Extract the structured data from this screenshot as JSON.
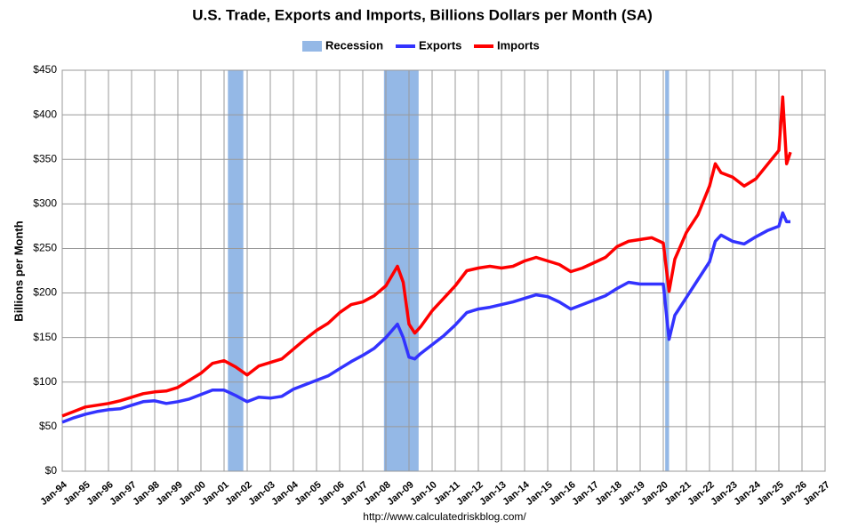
{
  "chart_data": {
    "type": "line",
    "title": "U.S. Trade, Exports and Imports, Billions Dollars per Month (SA)",
    "y_label": "Billions per Month",
    "source": "http://www.calculatedriskblog.com/",
    "legend_position": "top",
    "grid": true,
    "recession_name": "Recession",
    "recession_color": "#94b8e6",
    "recessions": [
      {
        "start": "Mar-01",
        "end": "Nov-01"
      },
      {
        "start": "Dec-07",
        "end": "Jun-09"
      },
      {
        "start": "Feb-20",
        "end": "Apr-20"
      }
    ],
    "x": [
      "Jan-94",
      "Jul-94",
      "Jan-95",
      "Jul-95",
      "Jan-96",
      "Jul-96",
      "Jan-97",
      "Jul-97",
      "Jan-98",
      "Jul-98",
      "Jan-99",
      "Jul-99",
      "Jan-00",
      "Jul-00",
      "Jan-01",
      "Jul-01",
      "Jan-02",
      "Jul-02",
      "Jan-03",
      "Jul-03",
      "Jan-04",
      "Jul-04",
      "Jan-05",
      "Jul-05",
      "Jan-06",
      "Jul-06",
      "Jan-07",
      "Jul-07",
      "Jan-08",
      "Jul-08",
      "Oct-08",
      "Jan-09",
      "Apr-09",
      "Jul-09",
      "Jan-10",
      "Jul-10",
      "Jan-11",
      "Jul-11",
      "Jan-12",
      "Jul-12",
      "Jan-13",
      "Jul-13",
      "Jan-14",
      "Jul-14",
      "Jan-15",
      "Jul-15",
      "Jan-16",
      "Jul-16",
      "Jan-17",
      "Jul-17",
      "Jan-18",
      "Jul-18",
      "Jan-19",
      "Jul-19",
      "Jan-20",
      "Apr-20",
      "Jul-20",
      "Jan-21",
      "Jul-21",
      "Jan-22",
      "Apr-22",
      "Jul-22",
      "Jan-23",
      "Jul-23",
      "Jan-24",
      "Jul-24",
      "Jan-25",
      "Mar-25",
      "May-25",
      "Jul-25"
    ],
    "series": [
      {
        "name": "Exports",
        "color": "#3333ff",
        "values": [
          55,
          60,
          64,
          67,
          69,
          70,
          74,
          78,
          79,
          76,
          78,
          81,
          86,
          91,
          91,
          85,
          78,
          83,
          82,
          84,
          92,
          97,
          102,
          107,
          115,
          123,
          130,
          138,
          150,
          165,
          150,
          128,
          126,
          132,
          142,
          152,
          164,
          178,
          182,
          184,
          187,
          190,
          194,
          198,
          196,
          190,
          182,
          187,
          192,
          197,
          205,
          212,
          210,
          210,
          210,
          148,
          175,
          195,
          215,
          235,
          258,
          265,
          258,
          255,
          263,
          270,
          275,
          290,
          280,
          280
        ]
      },
      {
        "name": "Imports",
        "color": "#ff0000",
        "values": [
          62,
          67,
          72,
          74,
          76,
          79,
          83,
          87,
          89,
          90,
          94,
          102,
          110,
          121,
          124,
          117,
          108,
          118,
          122,
          126,
          137,
          148,
          158,
          166,
          178,
          187,
          190,
          197,
          208,
          230,
          212,
          165,
          155,
          162,
          180,
          194,
          208,
          225,
          228,
          230,
          228,
          230,
          236,
          240,
          236,
          232,
          224,
          228,
          234,
          240,
          252,
          258,
          260,
          262,
          256,
          202,
          238,
          268,
          288,
          320,
          345,
          335,
          330,
          320,
          328,
          344,
          360,
          420,
          345,
          358
        ]
      }
    ],
    "xlim": [
      "Jan-94",
      "Jan-27"
    ],
    "xticks": [
      "Jan-94",
      "Jan-95",
      "Jan-96",
      "Jan-97",
      "Jan-98",
      "Jan-99",
      "Jan-00",
      "Jan-01",
      "Jan-02",
      "Jan-03",
      "Jan-04",
      "Jan-05",
      "Jan-06",
      "Jan-07",
      "Jan-08",
      "Jan-09",
      "Jan-10",
      "Jan-11",
      "Jan-12",
      "Jan-13",
      "Jan-14",
      "Jan-15",
      "Jan-16",
      "Jan-17",
      "Jan-18",
      "Jan-19",
      "Jan-20",
      "Jan-21",
      "Jan-22",
      "Jan-23",
      "Jan-24",
      "Jan-25",
      "Jan-26",
      "Jan-27"
    ],
    "ylim": [
      0,
      450
    ],
    "yticks": [
      {
        "value": 0,
        "label": "$0"
      },
      {
        "value": 50,
        "label": "$50"
      },
      {
        "value": 100,
        "label": "$100"
      },
      {
        "value": 150,
        "label": "$150"
      },
      {
        "value": 200,
        "label": "$200"
      },
      {
        "value": 250,
        "label": "$250"
      },
      {
        "value": 300,
        "label": "$300"
      },
      {
        "value": 350,
        "label": "$350"
      },
      {
        "value": 400,
        "label": "$400"
      },
      {
        "value": 450,
        "label": "$450"
      }
    ]
  }
}
